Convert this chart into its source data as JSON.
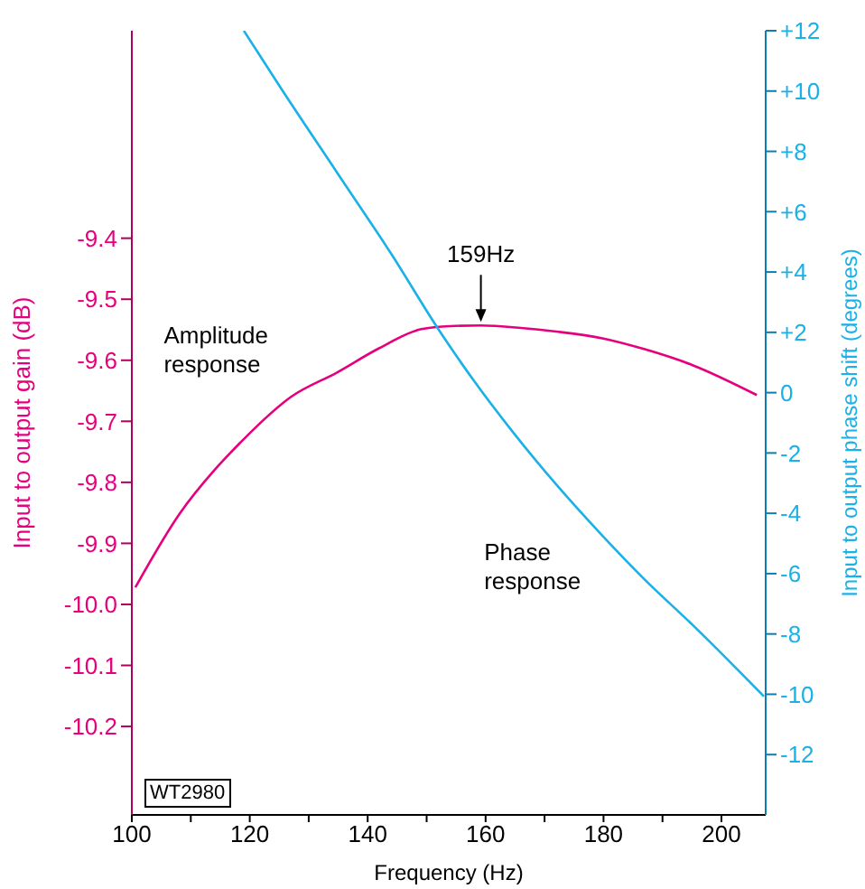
{
  "chart_data": {
    "type": "line",
    "xlabel": "Frequency (Hz)",
    "ylabel": "Input to output  gain (dB)",
    "y2label": "Input to output  phase shift (degrees)",
    "xlim": [
      100,
      207.5
    ],
    "xticks": [
      100,
      {
        "value": 110,
        "label": null
      },
      120,
      {
        "value": 130,
        "label": null
      },
      140,
      {
        "value": 150,
        "label": null
      },
      160,
      {
        "value": 170,
        "label": null
      },
      180,
      {
        "value": 190,
        "label": null
      },
      200
    ],
    "ylim": [
      -10.345,
      -9.06
    ],
    "yticks": [
      -9.4,
      -9.5,
      -9.6,
      -9.7,
      -9.8,
      -9.9,
      {
        "value": -10,
        "label": "-10.0"
      },
      -10.1,
      -10.2
    ],
    "y2lim": [
      -14,
      12
    ],
    "y2ticks": [
      {
        "value": 12,
        "label": "+12"
      },
      {
        "value": 10,
        "label": "+10"
      },
      {
        "value": 8,
        "label": "+8"
      },
      {
        "value": 6,
        "label": "+6"
      },
      {
        "value": 4,
        "label": "+4"
      },
      {
        "value": 2,
        "label": "+2"
      },
      0,
      -2,
      -4,
      -6,
      -8,
      -10,
      -12
    ],
    "series": [
      {
        "name": "Amplitude response",
        "color": "#e6007e",
        "x": [
          100.6,
          108.2,
          114,
          118.4,
          121,
          127,
          134.8,
          142,
          149.1,
          154,
          159.2,
          166,
          172,
          179.8,
          187,
          195.1,
          206
        ],
        "values": [
          -9.972,
          -9.85,
          -9.78,
          -9.735,
          -9.71,
          -9.66,
          -9.62,
          -9.58,
          -9.549,
          -9.544,
          -9.543,
          -9.547,
          -9.553,
          -9.564,
          -9.582,
          -9.608,
          -9.657
        ]
      },
      {
        "name": "Phase response",
        "color": "#1ab0e8",
        "axis": "y2",
        "x": [
          119,
          125.4,
          134.8,
          144,
          152.1,
          158,
          164.4,
          172,
          179.8,
          187,
          195.1,
          207.2
        ],
        "values": [
          12,
          10.06,
          7.3,
          4.6,
          2.07,
          0.4,
          -1.25,
          -3.05,
          -4.74,
          -6.2,
          -7.7,
          -10.07
        ]
      }
    ],
    "annotations": [
      {
        "text": "159Hz",
        "x": 159.2,
        "y": -9.543
      },
      "WT2980"
    ],
    "grid": false,
    "legend": false,
    "marker": "none",
    "line_style": "solid"
  }
}
